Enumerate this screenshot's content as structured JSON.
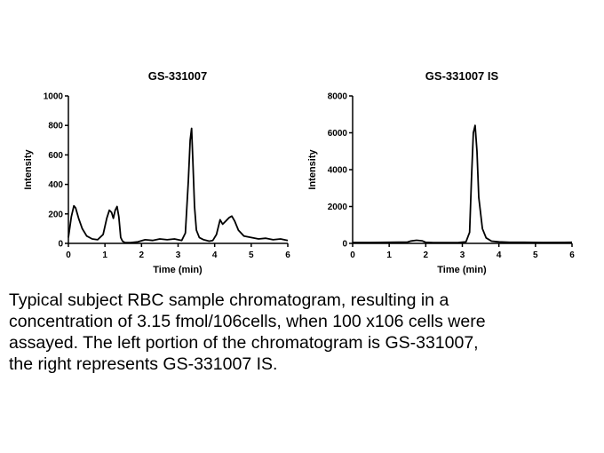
{
  "chart_data": [
    {
      "type": "line",
      "title": "GS-331007",
      "xlabel": "Time (min)",
      "ylabel": "Intensity",
      "xlim": [
        0,
        6
      ],
      "ylim": [
        0,
        1000
      ],
      "xticks": [
        "0",
        "1",
        "2",
        "3",
        "4",
        "5",
        "6"
      ],
      "yticks": [
        "0",
        "200",
        "400",
        "600",
        "800",
        "1000"
      ],
      "grid": false,
      "series": [
        {
          "x": [
            0,
            0.08,
            0.15,
            0.2,
            0.28,
            0.38,
            0.5,
            0.65,
            0.8,
            0.95,
            1.05,
            1.12,
            1.18,
            1.23,
            1.28,
            1.33,
            1.38,
            1.43,
            1.48,
            1.55,
            1.7,
            1.9,
            2.1,
            2.3,
            2.5,
            2.7,
            2.9,
            3.1,
            3.2,
            3.28,
            3.33,
            3.37,
            3.4,
            3.45,
            3.5,
            3.58,
            3.7,
            3.85,
            3.95,
            4.05,
            4.15,
            4.22,
            4.3,
            4.4,
            4.47,
            4.55,
            4.65,
            4.8,
            5.0,
            5.2,
            5.4,
            5.6,
            5.8,
            6.0
          ],
          "y": [
            40,
            180,
            255,
            240,
            170,
            100,
            50,
            30,
            25,
            60,
            170,
            225,
            210,
            170,
            225,
            250,
            180,
            40,
            15,
            5,
            5,
            10,
            25,
            20,
            30,
            25,
            30,
            20,
            70,
            420,
            700,
            780,
            580,
            250,
            90,
            40,
            25,
            15,
            20,
            60,
            160,
            130,
            150,
            175,
            185,
            150,
            90,
            50,
            40,
            30,
            35,
            25,
            30,
            20
          ]
        }
      ]
    },
    {
      "type": "line",
      "title": "GS-331007  IS",
      "xlabel": "Time (min)",
      "ylabel": "Intensity",
      "xlim": [
        0,
        6
      ],
      "ylim": [
        0,
        8000
      ],
      "xticks": [
        "0",
        "1",
        "2",
        "3",
        "4",
        "5",
        "6"
      ],
      "yticks": [
        "0",
        "2000",
        "4000",
        "6000",
        "8000"
      ],
      "grid": false,
      "series": [
        {
          "x": [
            0,
            0.5,
            1.0,
            1.5,
            1.6,
            1.75,
            1.9,
            2.0,
            2.2,
            2.6,
            2.9,
            3.1,
            3.2,
            3.25,
            3.3,
            3.35,
            3.4,
            3.45,
            3.55,
            3.65,
            3.8,
            4.0,
            4.3,
            4.7,
            5.2,
            6.0
          ],
          "y": [
            50,
            50,
            60,
            70,
            130,
            170,
            140,
            60,
            40,
            40,
            50,
            80,
            600,
            3500,
            6000,
            6400,
            5000,
            2500,
            800,
            300,
            120,
            80,
            60,
            60,
            50,
            60
          ]
        }
      ]
    }
  ],
  "caption": {
    "line1": "Typical subject RBC sample chromatogram, resulting in a",
    "line2": "concentration of 3.15 fmol/106cells, when 100 x106 cells were",
    "line3": "assayed.  The left portion of the chromatogram is GS-331007,",
    "line4": "the right represents GS-331007 IS."
  }
}
